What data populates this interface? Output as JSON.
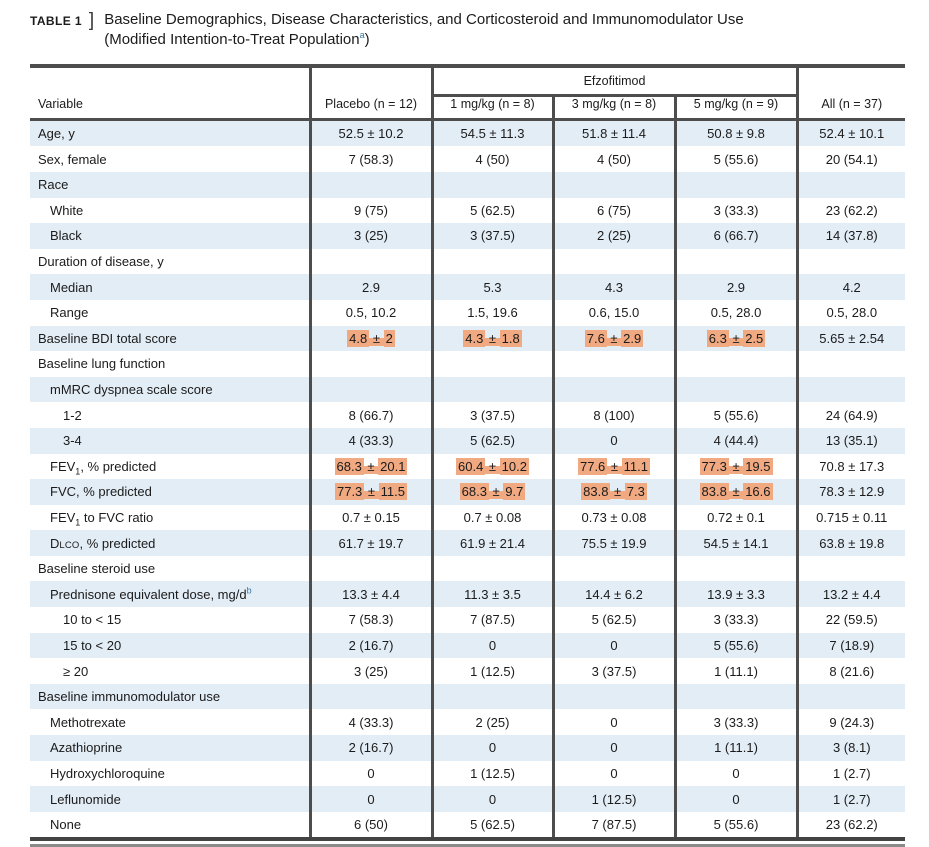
{
  "title": {
    "tag": "TABLE 1",
    "bracket": "]",
    "line1": "Baseline Demographics, Disease Characteristics, and Corticosteroid and Immunomodulator Use",
    "line2": "(Modified Intention-to-Treat Population^{a})"
  },
  "table": {
    "group_header": "Efzofitimod",
    "columns": [
      "Variable",
      "Placebo (n = 12)",
      "1 mg/kg (n = 8)",
      "3 mg/kg (n = 8)",
      "5 mg/kg (n = 9)",
      "All (n = 37)"
    ],
    "colors": {
      "stripe": "#e3edf6",
      "highlight": "#f0a981",
      "border": "#4d4d4d",
      "footnote_marker": "#3779a8"
    },
    "rows": [
      {
        "label": "Age, y",
        "indent": 0,
        "cells": [
          "52.5 ± 10.2",
          "54.5 ± 11.3",
          "51.8 ± 11.4",
          "50.8 ± 9.8",
          "52.4 ± 10.1"
        ]
      },
      {
        "label": "Sex, female",
        "indent": 0,
        "cells": [
          "7 (58.3)",
          "4 (50)",
          "4 (50)",
          "5 (55.6)",
          "20 (54.1)"
        ]
      },
      {
        "label": "Race",
        "indent": 0,
        "cells": [
          "",
          "",
          "",
          "",
          ""
        ]
      },
      {
        "label": "White",
        "indent": 1,
        "cells": [
          "9 (75)",
          "5 (62.5)",
          "6 (75)",
          "3 (33.3)",
          "23 (62.2)"
        ]
      },
      {
        "label": "Black",
        "indent": 1,
        "cells": [
          "3 (25)",
          "3 (37.5)",
          "2 (25)",
          "6 (66.7)",
          "14 (37.8)"
        ]
      },
      {
        "label": "Duration of disease, y",
        "indent": 0,
        "cells": [
          "",
          "",
          "",
          "",
          ""
        ]
      },
      {
        "label": "Median",
        "indent": 1,
        "cells": [
          "2.9",
          "5.3",
          "4.3",
          "2.9",
          "4.2"
        ]
      },
      {
        "label": "Range",
        "indent": 1,
        "cells": [
          "0.5, 10.2",
          "1.5, 19.6",
          "0.6, 15.0",
          "0.5, 28.0",
          "0.5, 28.0"
        ]
      },
      {
        "label": "Baseline BDI total score",
        "indent": 0,
        "cells": [
          {
            "t": "4.8 ± 2",
            "hl": true
          },
          {
            "t": "4.3 ± 1.8",
            "hl": true
          },
          {
            "t": "7.6 ± 2.9",
            "hl": true
          },
          {
            "t": "6.3 ± 2.5",
            "hl": true
          },
          "5.65 ± 2.54"
        ]
      },
      {
        "label": "Baseline lung function",
        "indent": 0,
        "cells": [
          "",
          "",
          "",
          "",
          ""
        ]
      },
      {
        "label": "mMRC dyspnea scale score",
        "indent": 1,
        "cells": [
          "",
          "",
          "",
          "",
          ""
        ]
      },
      {
        "label": "1-2",
        "indent": 2,
        "cells": [
          "8 (66.7)",
          "3 (37.5)",
          "8 (100)",
          "5 (55.6)",
          "24 (64.9)"
        ]
      },
      {
        "label": "3-4",
        "indent": 2,
        "cells": [
          "4 (33.3)",
          "5 (62.5)",
          "0",
          "4 (44.4)",
          "13 (35.1)"
        ]
      },
      {
        "label": "FEV_{1}, % predicted",
        "indent": 1,
        "cells": [
          {
            "t": "68.3 ± 20.1",
            "hl": true
          },
          {
            "t": "60.4 ± 10.2",
            "hl": true
          },
          {
            "t": "77.6 ± 11.1",
            "hl": true
          },
          {
            "t": "77.3 ± 19.5",
            "hl": true
          },
          "70.8 ± 17.3"
        ]
      },
      {
        "label": "FVC, % predicted",
        "indent": 1,
        "cells": [
          {
            "t": "77.3 ± 11.5",
            "hl": true
          },
          {
            "t": "68.3 ± 9.7",
            "hl": true
          },
          {
            "t": "83.8 ± 7.3",
            "hl": true
          },
          {
            "t": "83.8 ± 16.6",
            "hl": true
          },
          "78.3 ± 12.9"
        ]
      },
      {
        "label": "FEV_{1} to FVC ratio",
        "indent": 1,
        "cells": [
          "0.7 ± 0.15",
          "0.7 ± 0.08",
          "0.73 ± 0.08",
          "0.72 ± 0.1",
          "0.715 ± 0.11"
        ]
      },
      {
        "label": "D%{LCO}, % predicted",
        "indent": 1,
        "cells": [
          "61.7 ± 19.7",
          "61.9 ± 21.4",
          "75.5 ± 19.9",
          "54.5 ± 14.1",
          "63.8 ± 19.8"
        ]
      },
      {
        "label": "Baseline steroid use",
        "indent": 0,
        "cells": [
          "",
          "",
          "",
          "",
          ""
        ]
      },
      {
        "label": "Prednisone equivalent dose, mg/d^{b}",
        "indent": 1,
        "cells": [
          "13.3 ± 4.4",
          "11.3 ± 3.5",
          "14.4 ± 6.2",
          "13.9 ± 3.3",
          "13.2 ± 4.4"
        ]
      },
      {
        "label": "10 to < 15",
        "indent": 2,
        "cells": [
          "7 (58.3)",
          "7 (87.5)",
          "5 (62.5)",
          "3 (33.3)",
          "22 (59.5)"
        ]
      },
      {
        "label": "15 to < 20",
        "indent": 2,
        "cells": [
          "2 (16.7)",
          "0",
          "0",
          "5 (55.6)",
          "7 (18.9)"
        ]
      },
      {
        "label": "≥ 20",
        "indent": 2,
        "cells": [
          "3 (25)",
          "1 (12.5)",
          "3 (37.5)",
          "1 (11.1)",
          "8 (21.6)"
        ]
      },
      {
        "label": "Baseline immunomodulator use",
        "indent": 0,
        "cells": [
          "",
          "",
          "",
          "",
          ""
        ]
      },
      {
        "label": "Methotrexate",
        "indent": 1,
        "cells": [
          "4 (33.3)",
          "2 (25)",
          "0",
          "3 (33.3)",
          "9 (24.3)"
        ]
      },
      {
        "label": "Azathioprine",
        "indent": 1,
        "cells": [
          "2 (16.7)",
          "0",
          "0",
          "1 (11.1)",
          "3 (8.1)"
        ]
      },
      {
        "label": "Hydroxychloroquine",
        "indent": 1,
        "cells": [
          "0",
          "1 (12.5)",
          "0",
          "0",
          "1 (2.7)"
        ]
      },
      {
        "label": "Leflunomide",
        "indent": 1,
        "cells": [
          "0",
          "0",
          "1 (12.5)",
          "0",
          "1 (2.7)"
        ]
      },
      {
        "label": "None",
        "indent": 1,
        "cells": [
          "6 (50)",
          "5 (62.5)",
          "7 (87.5)",
          "5 (55.6)",
          "23 (62.2)"
        ]
      }
    ]
  }
}
